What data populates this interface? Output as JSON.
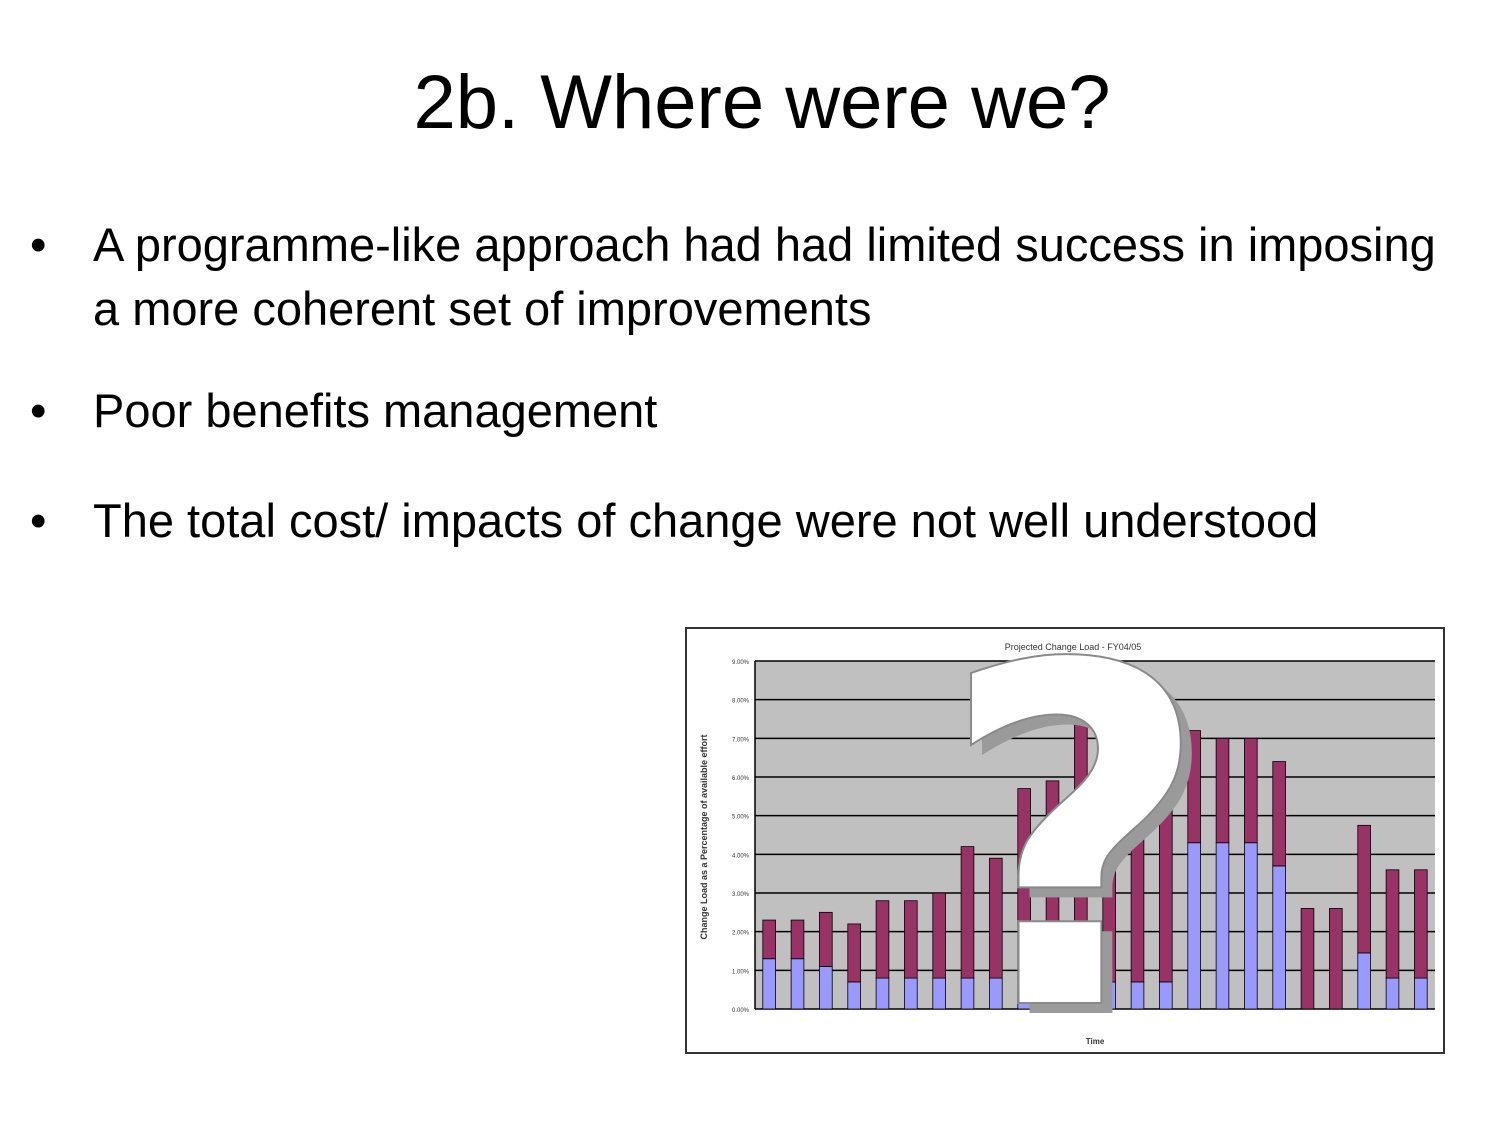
{
  "slide": {
    "title": "2b. Where were we?",
    "bullets": [
      {
        "marker": "•",
        "text": "A programme-like approach had had limited success in imposing a more coherent set of improvements"
      },
      {
        "marker": "•",
        "text": "Poor benefits management"
      },
      {
        "marker": "•",
        "text": "The total cost/ impacts of change were not well understood"
      }
    ]
  },
  "overlay": {
    "symbol": "?"
  },
  "chart_data": {
    "type": "bar",
    "stacked": true,
    "title": "Projected Change Load - FY04/05",
    "xlabel": "Time",
    "ylabel": "Change Load as a Percentage of available effort",
    "ylim": [
      0,
      900
    ],
    "yticks": [
      "0.00%",
      "1.00%",
      "2.00%",
      "3.00%",
      "4.00%",
      "5.00%",
      "6.00%",
      "7.00%",
      "8.00%",
      "9.00%"
    ],
    "grid": true,
    "legend": "none",
    "categories": [
      "",
      "",
      "",
      "",
      "",
      "",
      "",
      "",
      "",
      "",
      "",
      "",
      "",
      "",
      "",
      "",
      "",
      "",
      "",
      "",
      "",
      "",
      "",
      ""
    ],
    "series": [
      {
        "color": "#9999ff",
        "values": [
          130,
          130,
          110,
          70,
          80,
          80,
          80,
          80,
          80,
          80,
          80,
          80,
          70,
          70,
          70,
          430,
          430,
          430,
          370,
          0,
          0,
          145,
          80,
          80
        ]
      },
      {
        "color": "#993366",
        "values": [
          100,
          100,
          140,
          150,
          200,
          200,
          220,
          340,
          310,
          490,
          510,
          720,
          470,
          470,
          650,
          290,
          270,
          270,
          270,
          260,
          260,
          330,
          280,
          280
        ]
      }
    ]
  }
}
